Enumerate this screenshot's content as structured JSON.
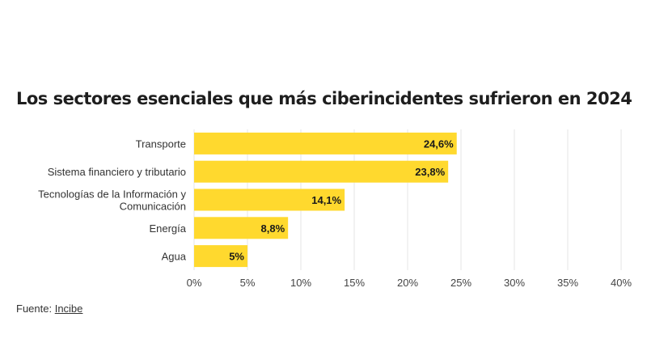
{
  "chart_data": {
    "type": "bar",
    "orientation": "horizontal",
    "title": "Los sectores esenciales que más ciberincidentes sufrieron en 2024",
    "categories": [
      [
        "Transporte"
      ],
      [
        "Sistema financiero y tributario"
      ],
      [
        "Tecnologías de la Información y",
        "Comunicación"
      ],
      [
        "Energía"
      ],
      [
        "Agua"
      ]
    ],
    "values": [
      24.6,
      23.8,
      14.1,
      8.8,
      5
    ],
    "value_labels": [
      "24,6%",
      "23,8%",
      "14,1%",
      "8,8%",
      "5%"
    ],
    "x_ticks": [
      0,
      5,
      10,
      15,
      20,
      25,
      30,
      35,
      40
    ],
    "x_tick_labels": [
      "0%",
      "5%",
      "10%",
      "15%",
      "20%",
      "25%",
      "30%",
      "35%",
      "40%"
    ],
    "xlim": [
      0,
      40
    ],
    "grid": true,
    "bar_color": "#ffd92e"
  },
  "source": {
    "prefix": "Fuente: ",
    "link_text": "Incibe"
  }
}
